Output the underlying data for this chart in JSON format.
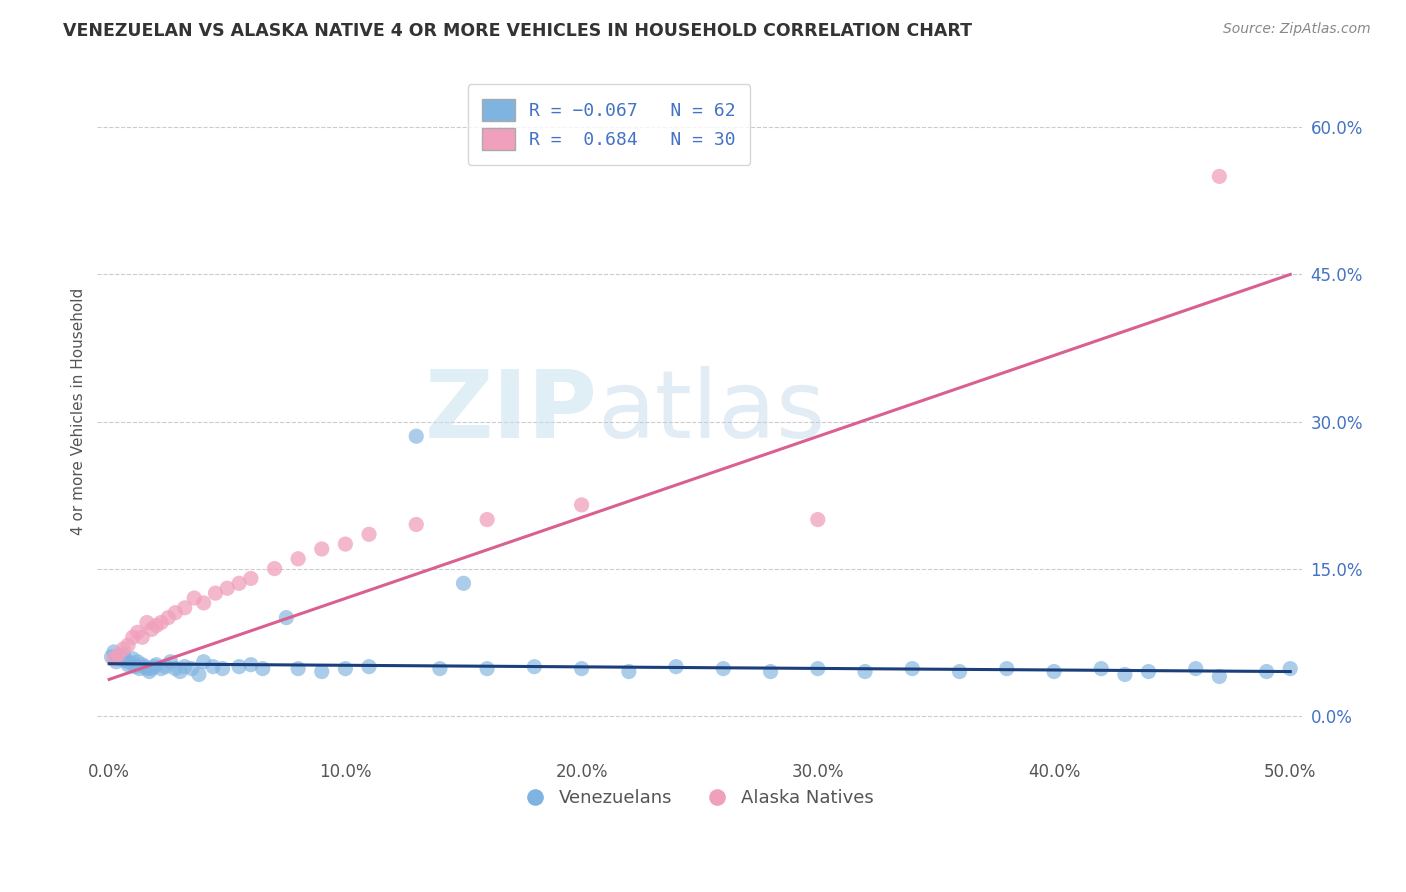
{
  "title": "VENEZUELAN VS ALASKA NATIVE 4 OR MORE VEHICLES IN HOUSEHOLD CORRELATION CHART",
  "source": "Source: ZipAtlas.com",
  "ylabel": "4 or more Vehicles in Household",
  "xlim": [
    -0.005,
    0.505
  ],
  "ylim": [
    -0.04,
    0.66
  ],
  "xticks": [
    0.0,
    0.1,
    0.2,
    0.3,
    0.4,
    0.5
  ],
  "xticklabels": [
    "0.0%",
    "10.0%",
    "20.0%",
    "30.0%",
    "40.0%",
    "50.0%"
  ],
  "yticks": [
    0.0,
    0.15,
    0.3,
    0.45,
    0.6
  ],
  "yticklabels": [
    "0.0%",
    "15.0%",
    "30.0%",
    "45.0%",
    "60.0%"
  ],
  "legend_venezuelans": "Venezuelans",
  "legend_alaska": "Alaska Natives",
  "blue_color": "#7fb3e0",
  "pink_color": "#f0a0bc",
  "blue_line_color": "#1a3f7a",
  "pink_line_color": "#d96090",
  "watermark_zip": "ZIP",
  "watermark_atlas": "atlas",
  "grid_color": "#cccccc",
  "venezuelan_x": [
    0.001,
    0.002,
    0.003,
    0.004,
    0.005,
    0.006,
    0.007,
    0.008,
    0.009,
    0.01,
    0.011,
    0.012,
    0.013,
    0.014,
    0.015,
    0.016,
    0.017,
    0.018,
    0.019,
    0.02,
    0.022,
    0.024,
    0.026,
    0.028,
    0.03,
    0.032,
    0.035,
    0.038,
    0.04,
    0.044,
    0.048,
    0.055,
    0.06,
    0.065,
    0.075,
    0.08,
    0.09,
    0.1,
    0.11,
    0.13,
    0.14,
    0.15,
    0.16,
    0.18,
    0.2,
    0.22,
    0.24,
    0.26,
    0.28,
    0.3,
    0.32,
    0.34,
    0.36,
    0.38,
    0.4,
    0.42,
    0.44,
    0.46,
    0.49,
    0.5,
    0.47,
    0.43
  ],
  "venezuelan_y": [
    0.06,
    0.065,
    0.055,
    0.06,
    0.058,
    0.062,
    0.056,
    0.052,
    0.054,
    0.058,
    0.05,
    0.055,
    0.048,
    0.052,
    0.05,
    0.048,
    0.045,
    0.048,
    0.05,
    0.052,
    0.048,
    0.05,
    0.055,
    0.048,
    0.045,
    0.05,
    0.048,
    0.042,
    0.055,
    0.05,
    0.048,
    0.05,
    0.052,
    0.048,
    0.1,
    0.048,
    0.045,
    0.048,
    0.05,
    0.285,
    0.048,
    0.135,
    0.048,
    0.05,
    0.048,
    0.045,
    0.05,
    0.048,
    0.045,
    0.048,
    0.045,
    0.048,
    0.045,
    0.048,
    0.045,
    0.048,
    0.045,
    0.048,
    0.045,
    0.048,
    0.04,
    0.042
  ],
  "alaska_x": [
    0.002,
    0.004,
    0.006,
    0.008,
    0.01,
    0.012,
    0.014,
    0.016,
    0.018,
    0.02,
    0.022,
    0.025,
    0.028,
    0.032,
    0.036,
    0.04,
    0.045,
    0.05,
    0.055,
    0.06,
    0.07,
    0.08,
    0.09,
    0.1,
    0.11,
    0.13,
    0.16,
    0.2,
    0.3,
    0.47
  ],
  "alaska_y": [
    0.058,
    0.062,
    0.068,
    0.072,
    0.08,
    0.085,
    0.08,
    0.095,
    0.088,
    0.092,
    0.095,
    0.1,
    0.105,
    0.11,
    0.12,
    0.115,
    0.125,
    0.13,
    0.135,
    0.14,
    0.15,
    0.16,
    0.17,
    0.175,
    0.185,
    0.195,
    0.2,
    0.215,
    0.2,
    0.55
  ],
  "pink_line_x0": 0.0,
  "pink_line_y0": 0.037,
  "pink_line_x1": 0.5,
  "pink_line_y1": 0.45,
  "blue_line_x0": 0.0,
  "blue_line_y0": 0.053,
  "blue_line_x1": 0.5,
  "blue_line_y1": 0.045
}
